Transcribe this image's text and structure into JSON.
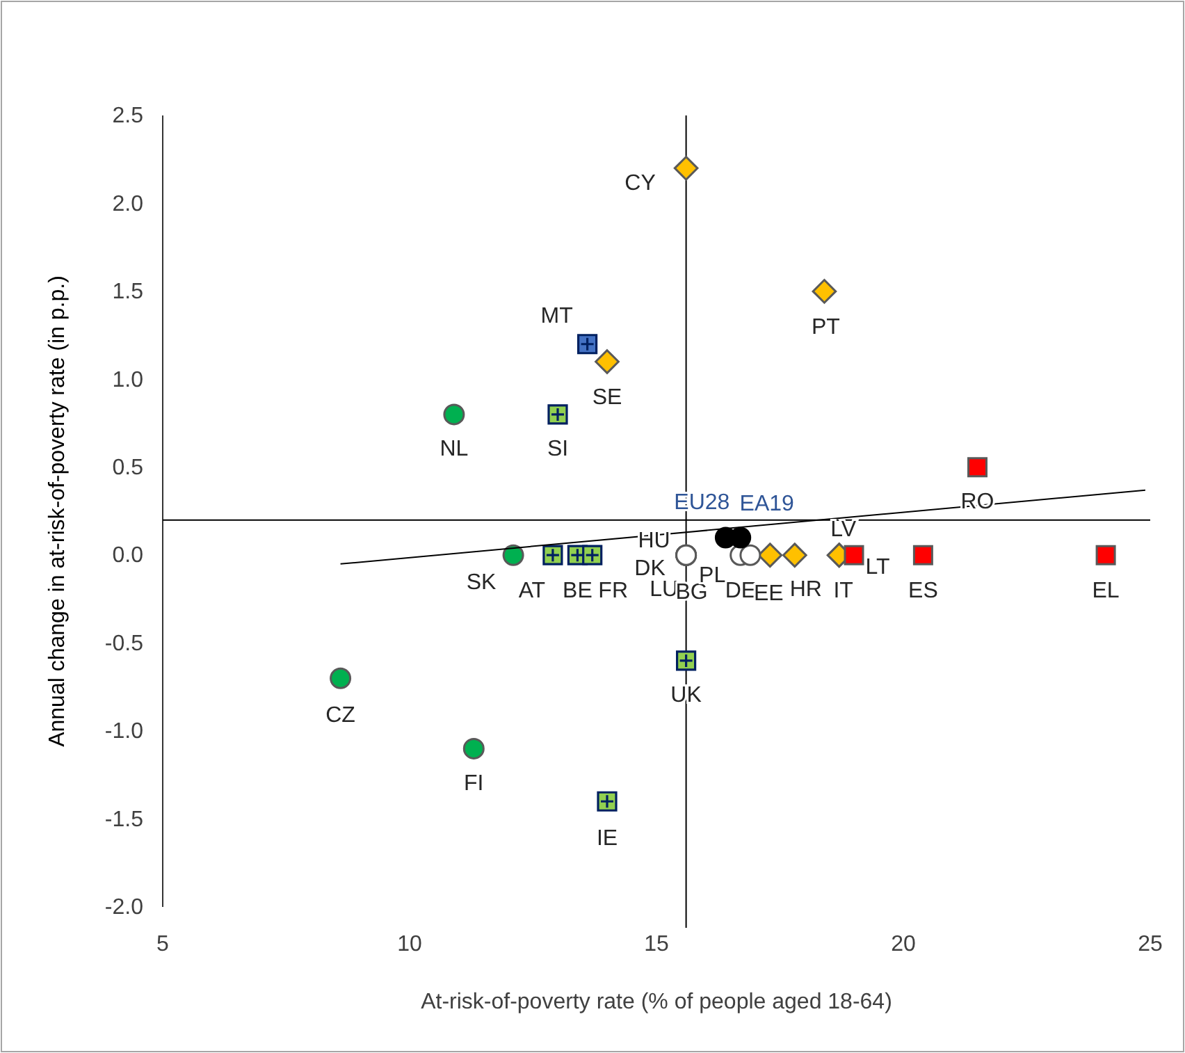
{
  "chart_data": {
    "type": "scatter",
    "xlabel": "At-risk-of-poverty rate (% of people aged 18-64)",
    "ylabel": "Annual change in at-risk-of-poverty  rate (in p.p.)",
    "xlim": [
      5,
      25
    ],
    "xticks": [
      5,
      10,
      15,
      20,
      25
    ],
    "ylim": [
      -2.0,
      2.5
    ],
    "yticks": [
      {
        "value": -2.0,
        "label": "-2.0"
      },
      {
        "value": -1.5,
        "label": "-1.5"
      },
      {
        "value": -1.0,
        "label": "-1.0"
      },
      {
        "value": -0.5,
        "label": "-0.5"
      },
      {
        "value": 0,
        "label": "0.0"
      },
      {
        "value": 0.5,
        "label": "0.5"
      },
      {
        "value": 1.0,
        "label": "1.0"
      },
      {
        "value": 1.5,
        "label": "1.5"
      },
      {
        "value": 2.0,
        "label": "2.0"
      },
      {
        "value": 2.5,
        "label": "2.5"
      }
    ],
    "grid": false,
    "series": [
      {
        "marker": "circle",
        "color": "#00b050",
        "x": [
          10.9,
          12.1,
          8.6,
          11.3
        ],
        "values": [
          0.8,
          0,
          -0.7,
          -1.1
        ]
      },
      {
        "marker": "cross",
        "color": "#92d050",
        "x": [
          13.0,
          12.9,
          13.4,
          13.7,
          15.6,
          14.0
        ],
        "values": [
          0.8,
          0,
          0,
          0,
          -0.6,
          -1.4
        ]
      },
      {
        "marker": "cross",
        "color": "#4472c4",
        "x": [
          13.6
        ],
        "values": [
          1.2
        ]
      },
      {
        "marker": "diamond",
        "color": "#ffc000",
        "x": [
          15.6,
          18.4,
          14.0,
          17.3,
          17.8,
          18.7,
          18.7
        ],
        "values": [
          2.2,
          1.5,
          1.1,
          0,
          0,
          0,
          0
        ]
      },
      {
        "marker": "square",
        "color": "#ff0000",
        "x": [
          21.5,
          19.0,
          20.4,
          24.1
        ],
        "values": [
          0.5,
          0,
          0,
          0
        ]
      },
      {
        "marker": "circle",
        "color": "#ffffff",
        "x": [
          15.6,
          15.6,
          15.6,
          15.6,
          16.7,
          16.9
        ],
        "values": [
          0,
          0,
          0,
          0,
          0,
          0
        ]
      },
      {
        "marker": "circle",
        "color": "#000000",
        "x": [
          16.4,
          16.7
        ],
        "values": [
          0.1,
          0.1
        ]
      },
      {
        "type": "line",
        "color": "#000000",
        "marker": "none",
        "x": [
          8.6,
          24.9
        ],
        "values": [
          -0.05,
          0.37
        ]
      }
    ],
    "ref_lines": [
      {
        "axis": "x",
        "value": 15.6,
        "color": "#000000"
      },
      {
        "axis": "y",
        "value": 0.2,
        "color": "#000000"
      }
    ],
    "annotations": [
      {
        "text": "CY",
        "x": 15.6,
        "y": 2.2
      },
      {
        "text": "PT",
        "x": 18.4,
        "y": 1.5
      },
      {
        "text": "MT",
        "x": 13.6,
        "y": 1.2
      },
      {
        "text": "SE",
        "x": 14.0,
        "y": 1.1
      },
      {
        "text": "NL",
        "x": 10.9,
        "y": 0.8
      },
      {
        "text": "SI",
        "x": 13.0,
        "y": 0.8
      },
      {
        "text": "RO",
        "x": 21.5,
        "y": 0.5
      },
      {
        "text": "EU28",
        "x": 16.4,
        "y": 0.1
      },
      {
        "text": "EA19",
        "x": 16.7,
        "y": 0.1
      },
      {
        "text": "SK",
        "x": 12.1,
        "y": 0
      },
      {
        "text": "AT",
        "x": 12.9,
        "y": 0
      },
      {
        "text": "BE",
        "x": 13.4,
        "y": 0
      },
      {
        "text": "FR",
        "x": 13.7,
        "y": 0
      },
      {
        "text": "HU",
        "x": 15.6,
        "y": 0
      },
      {
        "text": "DK",
        "x": 15.6,
        "y": 0
      },
      {
        "text": "LU",
        "x": 15.6,
        "y": 0
      },
      {
        "text": "BG",
        "x": 15.6,
        "y": 0
      },
      {
        "text": "PL",
        "x": 16.7,
        "y": 0
      },
      {
        "text": "DE",
        "x": 16.9,
        "y": 0
      },
      {
        "text": "EE",
        "x": 17.3,
        "y": 0
      },
      {
        "text": "HR",
        "x": 17.8,
        "y": 0
      },
      {
        "text": "IT",
        "x": 18.7,
        "y": 0
      },
      {
        "text": "LV",
        "x": 18.7,
        "y": 0
      },
      {
        "text": "LT",
        "x": 19.0,
        "y": 0
      },
      {
        "text": "ES",
        "x": 20.4,
        "y": 0
      },
      {
        "text": "EL",
        "x": 24.1,
        "y": 0
      },
      {
        "text": "UK",
        "x": 15.6,
        "y": -0.6
      },
      {
        "text": "CZ",
        "x": 8.6,
        "y": -0.7
      },
      {
        "text": "FI",
        "x": 11.3,
        "y": -1.1
      },
      {
        "text": "IE",
        "x": 14.0,
        "y": -1.4
      }
    ]
  }
}
